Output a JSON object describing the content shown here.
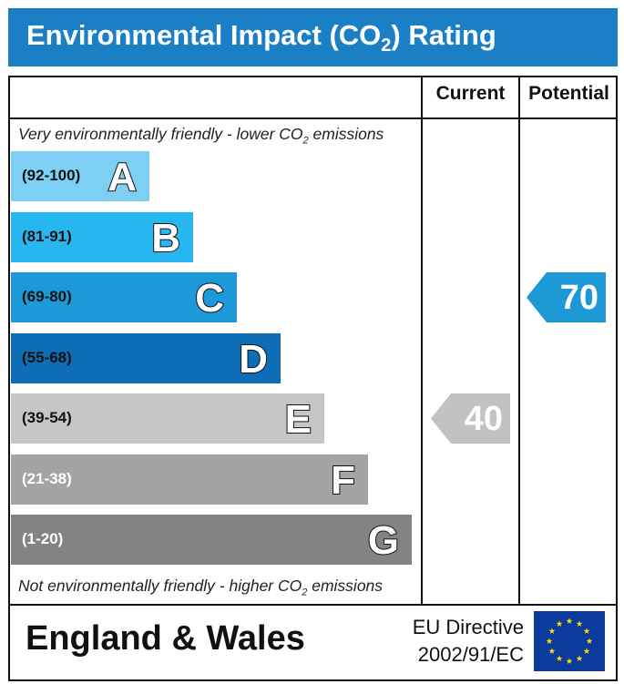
{
  "title": {
    "prefix": "Environmental Impact (CO",
    "subscript": "2",
    "suffix": ") Rating"
  },
  "columns": {
    "current": "Current",
    "potential": "Potential"
  },
  "notes": {
    "top_prefix": "Very environmentally friendly - lower CO",
    "top_sub": "2",
    "top_suffix": " emissions",
    "bottom_prefix": "Not environmentally friendly - higher CO",
    "bottom_sub": "2",
    "bottom_suffix": " emissions"
  },
  "footer": {
    "country": "England & Wales",
    "directive_line1": "EU Directive",
    "directive_line2": "2002/91/EC"
  },
  "colors": {
    "title_bar": "#1a7fc4",
    "current_arrow": "#c2c2c4",
    "potential_arrow": "#1d9ad6",
    "eu_flag": "#0a3a9c",
    "eu_star": "#f5d90a"
  },
  "chart_data": {
    "type": "bar",
    "title": "Environmental Impact (CO2) Rating",
    "bands": [
      {
        "letter": "A",
        "range": "(92-100)",
        "min": 92,
        "max": 100,
        "color": "#7dd0f3",
        "range_color": "#111111"
      },
      {
        "letter": "B",
        "range": "(81-91)",
        "min": 81,
        "max": 91,
        "color": "#27b6f0",
        "range_color": "#111111"
      },
      {
        "letter": "C",
        "range": "(69-80)",
        "min": 69,
        "max": 80,
        "color": "#1c99d6",
        "range_color": "#111111"
      },
      {
        "letter": "D",
        "range": "(55-68)",
        "min": 55,
        "max": 68,
        "color": "#0d6db5",
        "range_color": "#111111"
      },
      {
        "letter": "E",
        "range": "(39-54)",
        "min": 39,
        "max": 54,
        "color": "#c6c6c8",
        "range_color": "#111111"
      },
      {
        "letter": "F",
        "range": "(21-38)",
        "min": 21,
        "max": 38,
        "color": "#a4a4a6",
        "range_color": "#ffffff"
      },
      {
        "letter": "G",
        "range": "(1-20)",
        "min": 1,
        "max": 20,
        "color": "#838385",
        "range_color": "#ffffff"
      }
    ],
    "current": {
      "label": "Current",
      "value": 40,
      "band": "E"
    },
    "potential": {
      "label": "Potential",
      "value": 70,
      "band": "C"
    }
  }
}
